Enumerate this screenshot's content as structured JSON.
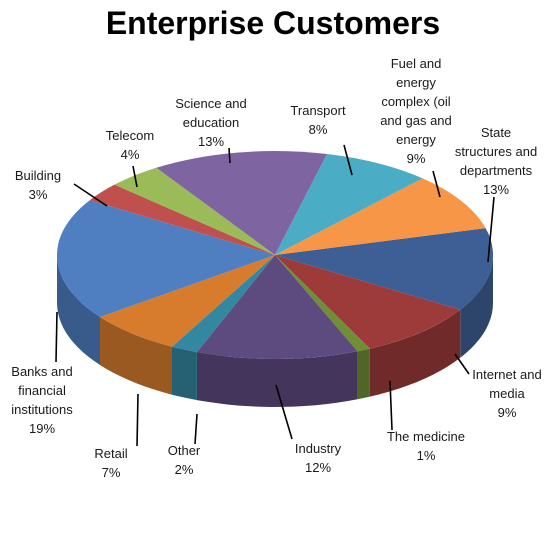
{
  "chart_data": {
    "type": "pie",
    "title": "Enterprise Customers",
    "slices": [
      {
        "label": [
          "State",
          "structures and",
          "departments"
        ],
        "value": 13,
        "pct": "13%",
        "color": "#3E5F95"
      },
      {
        "label": [
          "Internet and",
          "media"
        ],
        "value": 9,
        "pct": "9%",
        "color": "#9C3B39"
      },
      {
        "label": [
          "The medicine"
        ],
        "value": 1,
        "pct": "1%",
        "color": "#6F8E36"
      },
      {
        "label": [
          "Industry"
        ],
        "value": 12,
        "pct": "12%",
        "color": "#5D4A7F"
      },
      {
        "label": [
          "Other"
        ],
        "value": 2,
        "pct": "2%",
        "color": "#3387A0"
      },
      {
        "label": [
          "Retail"
        ],
        "value": 7,
        "pct": "7%",
        "color": "#D67C2C"
      },
      {
        "label": [
          "Banks and",
          "financial",
          "institutions"
        ],
        "value": 19,
        "pct": "19%",
        "color": "#4F7EC1"
      },
      {
        "label": [
          "Building"
        ],
        "value": 3,
        "pct": "3%",
        "color": "#C0504D"
      },
      {
        "label": [
          "Telecom"
        ],
        "value": 4,
        "pct": "4%",
        "color": "#9BBB59"
      },
      {
        "label": [
          "Science and",
          "education"
        ],
        "value": 13,
        "pct": "13%",
        "color": "#7F64A2"
      },
      {
        "label": [
          "Transport"
        ],
        "value": 8,
        "pct": "8%",
        "color": "#4BACC6"
      },
      {
        "label": [
          "Fuel and",
          "energy",
          "complex (oil",
          "and gas and",
          "energy"
        ],
        "value": 9,
        "pct": "9%",
        "color": "#F79646"
      }
    ]
  }
}
